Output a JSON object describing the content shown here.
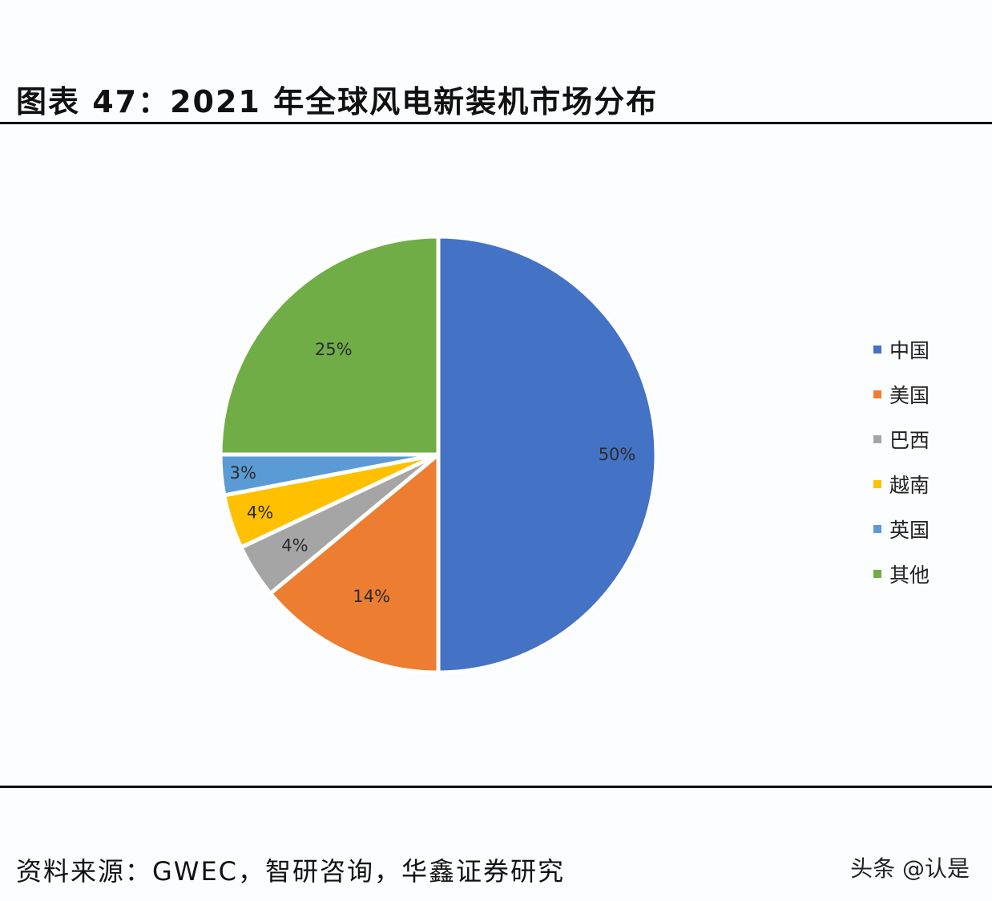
{
  "header": {
    "title": "图表 47：2021 年全球风电新装机市场分布"
  },
  "footer": {
    "source": "资料来源：GWEC，智研咨询，华鑫证券研究",
    "watermark": "头条 @认是"
  },
  "chart_data": {
    "type": "pie",
    "title": "2021 年全球风电新装机市场分布",
    "categories": [
      "中国",
      "美国",
      "巴西",
      "越南",
      "英国",
      "其他"
    ],
    "values": [
      50,
      14,
      4,
      4,
      3,
      25
    ],
    "labels": [
      "50%",
      "14%",
      "4%",
      "4%",
      "3%",
      "25%"
    ],
    "colors": [
      "#4472c4",
      "#ed7d31",
      "#a5a5a5",
      "#ffc000",
      "#5b9bd5",
      "#70ad47"
    ],
    "start_angle": "12 o'clock, clockwise",
    "legend_position": "right"
  },
  "legend": {
    "items": [
      {
        "label": "中国",
        "color": "#4472c4"
      },
      {
        "label": "美国",
        "color": "#ed7d31"
      },
      {
        "label": "巴西",
        "color": "#a5a5a5"
      },
      {
        "label": "越南",
        "color": "#ffc000"
      },
      {
        "label": "英国",
        "color": "#5b9bd5"
      },
      {
        "label": "其他",
        "color": "#70ad47"
      }
    ]
  }
}
